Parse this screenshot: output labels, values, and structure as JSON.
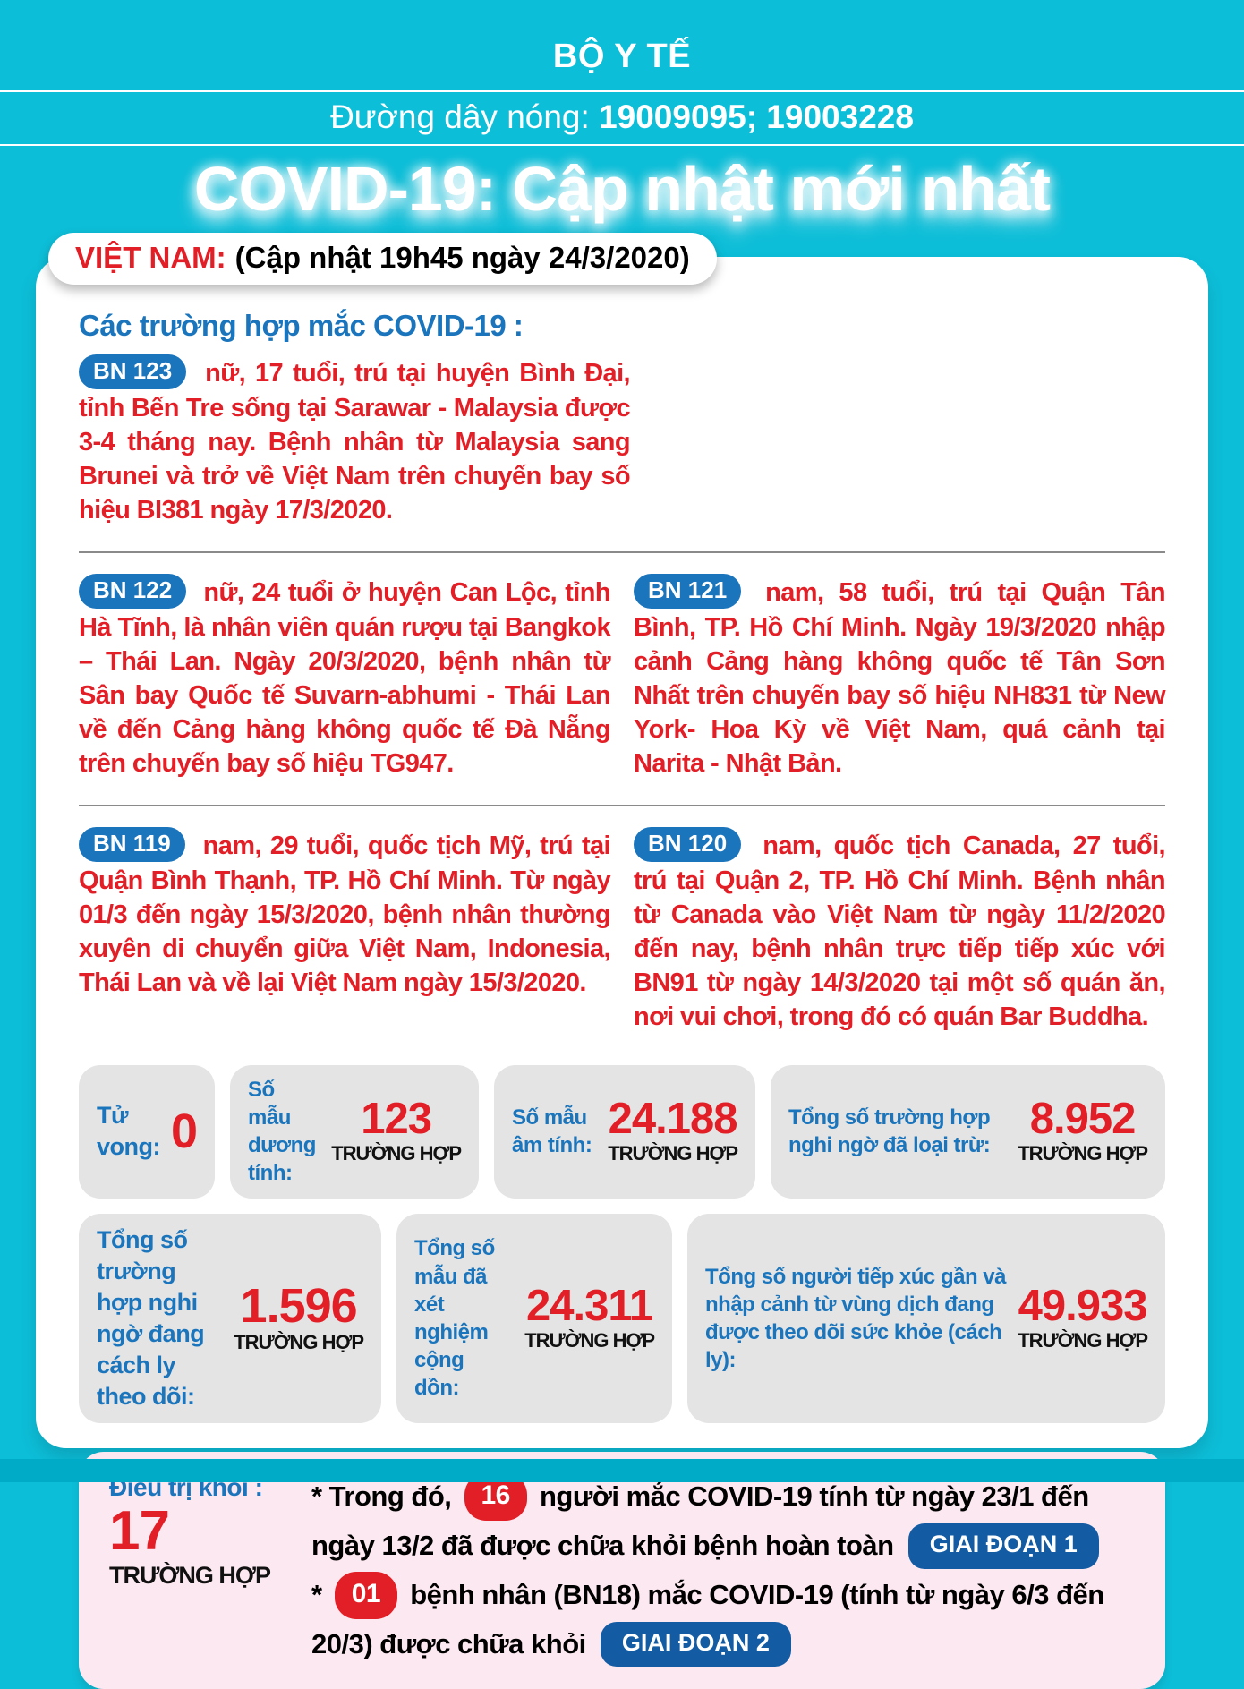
{
  "header": {
    "ministry": "BỘ Y TẾ",
    "hotline_label": "Đường dây nóng:",
    "hotline_numbers": "19009095; 19003228",
    "title": "COVID-19: Cập nhật mới nhất"
  },
  "vietnam": {
    "label": "VIỆT NAM:",
    "updated": "(Cập nhật 19h45 ngày 24/3/2020)"
  },
  "cases_heading": "Các trường hợp mắc COVID-19 :",
  "patients": [
    {
      "id": "BN 123",
      "text": "nữ, 17 tuổi, trú tại huyện Bình Đại, tỉnh Bến Tre sống tại Sarawar - Malaysia được 3-4 tháng nay. Bệnh nhân từ Malaysia sang Brunei và trở về Việt Nam trên chuyến bay số hiệu BI381 ngày 17/3/2020."
    },
    {
      "id": "BN 122",
      "text": "nữ, 24 tuổi ở huyện Can Lộc, tỉnh Hà Tĩnh, là nhân viên quán rượu tại Bangkok – Thái Lan. Ngày 20/3/2020, bệnh nhân từ Sân bay Quốc tế Suvarn-abhumi - Thái Lan về đến Cảng hàng không quốc tế Đà Nẵng trên chuyến bay số hiệu TG947."
    },
    {
      "id": "BN 121",
      "text": "nam, 58 tuổi, trú tại Quận Tân Bình, TP. Hồ Chí Minh. Ngày 19/3/2020 nhập cảnh Cảng hàng không quốc tế Tân Sơn Nhất trên chuyến bay số hiệu NH831 từ New York- Hoa Kỳ về Việt Nam, quá cảnh tại Narita - Nhật Bản."
    },
    {
      "id": "BN 119",
      "text": "nam, 29 tuổi, quốc tịch Mỹ, trú tại Quận Bình Thạnh, TP. Hồ Chí Minh. Từ ngày 01/3 đến ngày 15/3/2020, bệnh nhân thường xuyên di chuyển giữa Việt Nam, Indonesia, Thái Lan và về lại Việt Nam ngày 15/3/2020."
    },
    {
      "id": "BN 120",
      "text": "nam, quốc tịch Canada, 27 tuổi, trú tại Quận 2, TP. Hồ Chí Minh. Bệnh nhân từ Canada vào Việt Nam từ ngày 11/2/2020 đến nay, bệnh nhân trực tiếp tiếp xúc với BN91 từ ngày 14/3/2020 tại một số quán ăn, nơi vui chơi, trong đó có quán Bar Buddha."
    }
  ],
  "stats": {
    "row1": [
      {
        "label": "Tử vong:",
        "value": "0",
        "unit": ""
      },
      {
        "label": "Số mẫu dương tính:",
        "value": "123",
        "unit": "TRƯỜNG HỢP"
      },
      {
        "label": "Số mẫu âm tính:",
        "value": "24.188",
        "unit": "TRƯỜNG HỢP"
      },
      {
        "label": "Tổng số trường hợp nghi ngờ đã loại trừ:",
        "value": "8.952",
        "unit": "TRƯỜNG HỢP"
      }
    ],
    "row2": [
      {
        "label": "Tổng số trường hợp nghi ngờ đang cách ly theo dõi:",
        "value": "1.596",
        "unit": "TRƯỜNG HỢP"
      },
      {
        "label": "Tổng số mẫu đã xét nghiệm cộng dồn:",
        "value": "24.311",
        "unit": "TRƯỜNG HỢP"
      },
      {
        "label": "Tổng số người tiếp xúc gần và nhập cảnh từ vùng dịch đang được theo dõi sức khỏe (cách ly):",
        "value": "49.933",
        "unit": "TRƯỜNG HỢP"
      }
    ]
  },
  "recovered": {
    "label": "Điều trị khỏi :",
    "value": "17",
    "unit": "TRƯỜNG HỢP",
    "note1": {
      "prefix": "* Trong đó,",
      "count": "16",
      "middle": "người mắc COVID-19 tính từ ngày 23/1 đến ngày 13/2 đã được chữa  khỏi bệnh hoàn toàn",
      "phase": "GIAI ĐOẠN 1"
    },
    "note2": {
      "prefix": "*",
      "count": "01",
      "middle": "bệnh nhân (BN18) mắc COVID-19 (tính từ ngày 6/3 đến 20/3) được chữa khỏi",
      "phase": "GIAI ĐOẠN 2"
    }
  },
  "colors": {
    "background": "#0dbed8",
    "red": "#e21f26",
    "blue": "#1b75bc",
    "phase_pill_blue": "#135ca4",
    "stat_box_gray": "#e4e4e4",
    "recovered_pink": "#fce8f0"
  }
}
